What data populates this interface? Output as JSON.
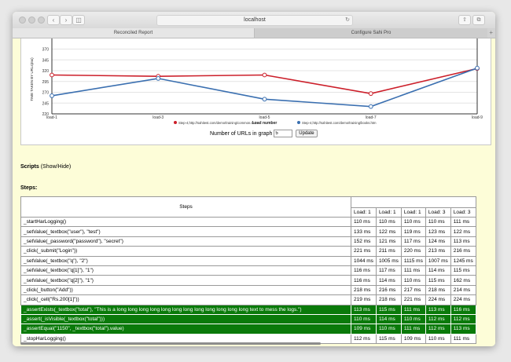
{
  "window": {
    "url": "localhost",
    "tabs": [
      "Reconciled Report",
      "Configure Sahi Pro"
    ]
  },
  "chart_data": {
    "type": "line",
    "categories": [
      "load-1",
      "load-3",
      "load-5",
      "load-7",
      "load-9"
    ],
    "ylabel": "TIME TAKEN BY URLs(ms)",
    "xlabel": "Load number",
    "yticks": [
      "370",
      "345",
      "320",
      "295",
      "270",
      "245",
      "220"
    ],
    "ylim": [
      220,
      380
    ],
    "series": [
      {
        "name": "Step-4,http://sahitest.com/demo/training/common.css",
        "color": "#cc1f2a",
        "values": [
          310,
          307,
          310,
          267,
          325
        ]
      },
      {
        "name": "Step-4,http://sahitest.com/demo/training/books.htm",
        "color": "#3a6fb0",
        "values": [
          262,
          302,
          254,
          237,
          326
        ]
      }
    ]
  },
  "controls": {
    "urls_label": "Number of URLs in graph",
    "urls_value": "5",
    "update_label": "Update"
  },
  "scripts": {
    "title": "Scripts",
    "toggle": "(Show/Hide)"
  },
  "steps": {
    "title": "Steps:",
    "column_header": "Steps",
    "load_headers": [
      "Load: 1",
      "Load: 1",
      "Load: 1",
      "Load: 3",
      "Load: 3"
    ],
    "rows": [
      {
        "step": "_startHarLogging()",
        "times": [
          "110 ms",
          "110 ms",
          "110 ms",
          "110 ms",
          "111 ms"
        ]
      },
      {
        "step": "_setValue(_textbox(\"user\"), \"test\")",
        "times": [
          "133 ms",
          "122 ms",
          "119 ms",
          "123 ms",
          "122 ms"
        ]
      },
      {
        "step": "_setValue(_password(\"password\"), \"secret\")",
        "times": [
          "152 ms",
          "121 ms",
          "117 ms",
          "124 ms",
          "113 ms"
        ]
      },
      {
        "step": "_click(_submit(\"Login\"))",
        "times": [
          "221 ms",
          "211 ms",
          "220 ms",
          "213 ms",
          "216 ms"
        ]
      },
      {
        "step": "_setValue(_textbox(\"q\"), \"2\")",
        "times": [
          "1044 ms",
          "1005 ms",
          "1115 ms",
          "1007 ms",
          "1245 ms"
        ]
      },
      {
        "step": "_setValue(_textbox(\"q[1]\"), \"1\")",
        "times": [
          "116 ms",
          "117 ms",
          "111 ms",
          "114 ms",
          "115 ms"
        ]
      },
      {
        "step": "_setValue(_textbox(\"q[2]\"), \"1\")",
        "times": [
          "116 ms",
          "114 ms",
          "110 ms",
          "115 ms",
          "162 ms"
        ]
      },
      {
        "step": "_click(_button(\"Add\"))",
        "times": [
          "218 ms",
          "216 ms",
          "217 ms",
          "218 ms",
          "214 ms"
        ]
      },
      {
        "step": "_click(_cell(\"Rs.200[1]\"))",
        "times": [
          "219 ms",
          "218 ms",
          "221 ms",
          "224 ms",
          "224 ms"
        ]
      },
      {
        "step": "_assertExists(_textbox(\"total\"), \"This is a long long long long long long long long long long long long text to mess the logs.\")",
        "times": [
          "113 ms",
          "115 ms",
          "111 ms",
          "113 ms",
          "116 ms"
        ],
        "pass": true
      },
      {
        "step": "_assert(_isVisible(_textbox(\"total\")))",
        "times": [
          "110 ms",
          "114 ms",
          "110 ms",
          "112 ms",
          "112 ms"
        ],
        "pass": true
      },
      {
        "step": "_assertEqual(\"1150\", _textbox(\"total\").value)",
        "times": [
          "109 ms",
          "110 ms",
          "111 ms",
          "112 ms",
          "113 ms"
        ],
        "pass": true
      },
      {
        "step": "_stopHarLogging()",
        "times": [
          "112 ms",
          "115 ms",
          "109 ms",
          "110 ms",
          "111 ms"
        ]
      }
    ]
  }
}
